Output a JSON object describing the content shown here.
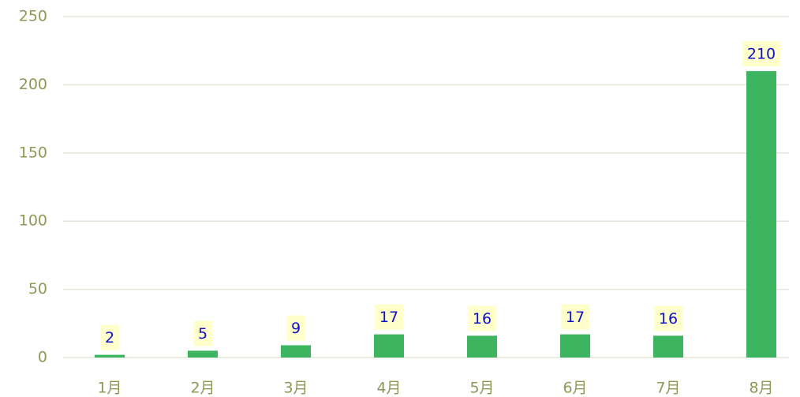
{
  "chart_data": {
    "type": "bar",
    "categories": [
      "1月",
      "2月",
      "3月",
      "4月",
      "5月",
      "6月",
      "7月",
      "8月"
    ],
    "values": [
      2,
      5,
      9,
      17,
      16,
      17,
      16,
      210
    ],
    "color": "#3cb460",
    "label_background": "#ffffcc",
    "label_color": "#1010cc",
    "ylim": [
      0,
      250
    ],
    "yticks": [
      0,
      50,
      100,
      150,
      200,
      250
    ],
    "grid": true
  }
}
